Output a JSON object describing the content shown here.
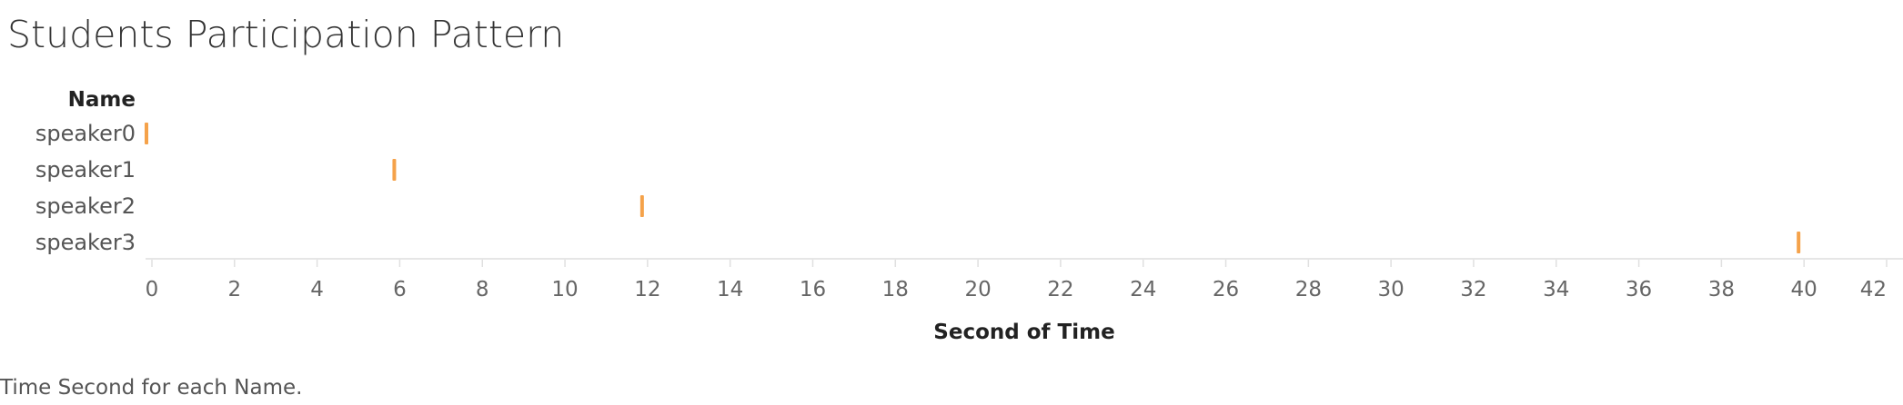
{
  "title": "Students Participation Pattern",
  "caption": "Time Second for each Name.",
  "colors": {
    "mark": "#F5A24A",
    "axis": "#e6e6e6",
    "tick": "#e0e0e0"
  },
  "chart_data": {
    "type": "scatter",
    "mark": "tick",
    "row_header": "Name",
    "xlabel": "Second of Time",
    "xlim": [
      0,
      42
    ],
    "xticks": [
      0,
      2,
      4,
      6,
      8,
      10,
      12,
      14,
      16,
      18,
      20,
      22,
      24,
      26,
      28,
      30,
      32,
      34,
      36,
      38,
      40,
      42
    ],
    "categories": [
      "speaker0",
      "speaker1",
      "speaker2",
      "speaker3"
    ],
    "points": [
      {
        "name": "speaker0",
        "x": 0
      },
      {
        "name": "speaker1",
        "x": 6
      },
      {
        "name": "speaker2",
        "x": 12
      },
      {
        "name": "speaker3",
        "x": 40
      }
    ]
  }
}
